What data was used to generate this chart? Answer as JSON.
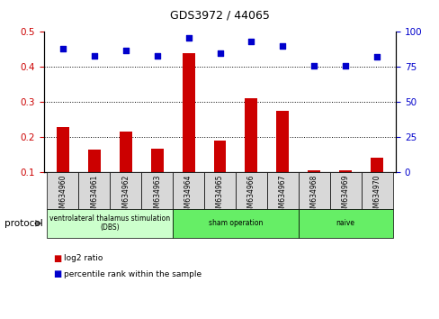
{
  "title": "GDS3972 / 44065",
  "categories": [
    "GSM634960",
    "GSM634961",
    "GSM634962",
    "GSM634963",
    "GSM634964",
    "GSM634965",
    "GSM634966",
    "GSM634967",
    "GSM634968",
    "GSM634969",
    "GSM634970"
  ],
  "log2_ratio": [
    0.23,
    0.165,
    0.215,
    0.168,
    0.44,
    0.19,
    0.31,
    0.275,
    0.105,
    0.105,
    0.142
  ],
  "percentile_rank": [
    88,
    83,
    87,
    83,
    96,
    85,
    93,
    90,
    76,
    76,
    82
  ],
  "bar_color": "#cc0000",
  "dot_color": "#0000cc",
  "ylim_left": [
    0.1,
    0.5
  ],
  "ylim_right": [
    0,
    100
  ],
  "yticks_left": [
    0.1,
    0.2,
    0.3,
    0.4,
    0.5
  ],
  "yticks_right": [
    0,
    25,
    50,
    75,
    100
  ],
  "group_defs": [
    {
      "label": "ventrolateral thalamus stimulation\n(DBS)",
      "start": 0,
      "end": 3,
      "color": "#ccffcc"
    },
    {
      "label": "sham operation",
      "start": 4,
      "end": 7,
      "color": "#66ee66"
    },
    {
      "label": "naive",
      "start": 8,
      "end": 10,
      "color": "#66ee66"
    }
  ],
  "protocol_label": "protocol",
  "legend_items": [
    {
      "label": "log2 ratio",
      "color": "#cc0000"
    },
    {
      "label": "percentile rank within the sample",
      "color": "#0000cc"
    }
  ],
  "tick_label_color_left": "#cc0000",
  "tick_label_color_right": "#0000cc",
  "cell_bg_color": "#d8d8d8",
  "title_fontsize": 9,
  "bar_width": 0.4
}
